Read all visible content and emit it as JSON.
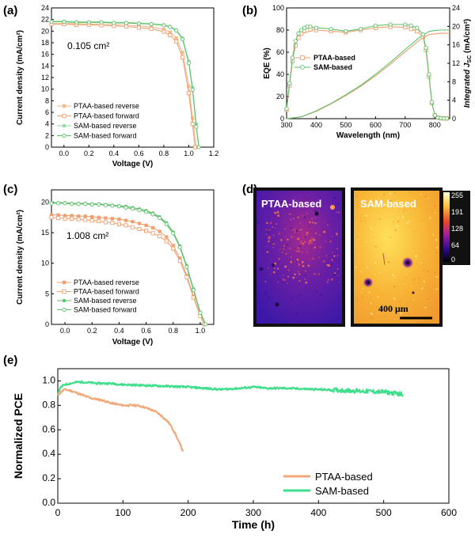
{
  "colors": {
    "ptaa_light": "#f4b98c",
    "ptaa": "#f0a070",
    "sam": "#5fc06a",
    "sam_light": "#8ed99a",
    "sam_e": "#3ddf8a",
    "ptaa_e": "#f2a878"
  },
  "chart_data": [
    {
      "id": "a",
      "panel_label": "(a)",
      "type": "line",
      "annotation": "0.105 cm²",
      "xlabel": "Voltage (V)",
      "ylabel": "Current density (mA/cm²)",
      "xlim": [
        -0.1,
        1.2
      ],
      "ylim": [
        0,
        24
      ],
      "xticks": [
        "0.0",
        "0.2",
        "0.4",
        "0.6",
        "0.8",
        "1.0",
        "1.2"
      ],
      "yticks": [
        "0",
        "2",
        "4",
        "6",
        "8",
        "10",
        "12",
        "14",
        "16",
        "18",
        "20",
        "22",
        "24"
      ],
      "legend_position": "bottom-left",
      "series": [
        {
          "name": "PTAA-based reverse",
          "marker": "filled-square",
          "color_key": "ptaa_light",
          "x": [
            -0.1,
            0.0,
            0.1,
            0.2,
            0.3,
            0.4,
            0.5,
            0.6,
            0.7,
            0.8,
            0.85,
            0.9,
            0.95,
            1.0,
            1.03,
            1.06
          ],
          "y": [
            21.3,
            21.3,
            21.3,
            21.2,
            21.2,
            21.1,
            21.0,
            20.9,
            20.7,
            20.3,
            19.8,
            18.8,
            16.3,
            10.5,
            5.0,
            0
          ]
        },
        {
          "name": "PTAA-based forward",
          "marker": "open-square",
          "color_key": "ptaa",
          "x": [
            -0.1,
            0.0,
            0.1,
            0.2,
            0.3,
            0.4,
            0.5,
            0.6,
            0.7,
            0.8,
            0.85,
            0.9,
            0.95,
            1.0,
            1.03,
            1.05
          ],
          "y": [
            21.2,
            21.2,
            21.1,
            21.1,
            21.0,
            20.9,
            20.8,
            20.6,
            20.4,
            19.9,
            19.3,
            18.2,
            15.5,
            9.3,
            4.0,
            0
          ]
        },
        {
          "name": "SAM-based reverse",
          "marker": "filled-circle",
          "color_key": "sam_light",
          "x": [
            -0.1,
            0.0,
            0.1,
            0.2,
            0.3,
            0.4,
            0.5,
            0.6,
            0.7,
            0.8,
            0.85,
            0.9,
            0.95,
            1.0,
            1.03,
            1.06,
            1.08
          ],
          "y": [
            21.7,
            21.7,
            21.6,
            21.6,
            21.6,
            21.5,
            21.5,
            21.4,
            21.3,
            21.1,
            20.8,
            20.2,
            18.8,
            14.8,
            10.3,
            4.0,
            0
          ]
        },
        {
          "name": "SAM-based forward",
          "marker": "open-circle",
          "color_key": "sam",
          "x": [
            -0.1,
            0.0,
            0.1,
            0.2,
            0.3,
            0.4,
            0.5,
            0.6,
            0.7,
            0.8,
            0.85,
            0.9,
            0.95,
            1.0,
            1.03,
            1.06,
            1.08
          ],
          "y": [
            21.6,
            21.6,
            21.5,
            21.5,
            21.5,
            21.4,
            21.4,
            21.3,
            21.2,
            21.0,
            20.7,
            20.1,
            18.6,
            14.5,
            9.9,
            3.5,
            0
          ]
        }
      ]
    },
    {
      "id": "b",
      "panel_label": "(b)",
      "type": "line",
      "xlabel": "Wavelength (nm)",
      "ylabel": "EQE (%)",
      "ylabel_right": "Integrated J",
      "ylabel_right_sub": "SC",
      "ylabel_right_unit": " (mA/cm²)",
      "xlim": [
        300,
        850
      ],
      "ylim": [
        0,
        100
      ],
      "ylim_right": [
        0,
        24
      ],
      "xticks": [
        "300",
        "400",
        "500",
        "600",
        "700",
        "800"
      ],
      "yticks": [
        "0",
        "20",
        "40",
        "60",
        "80",
        "100"
      ],
      "yticks_right": [
        "0",
        "4",
        "8",
        "12",
        "16",
        "20",
        "24"
      ],
      "legend_position": "center-right",
      "series": [
        {
          "name": "PTAA-based",
          "marker": "open-square",
          "color_key": "ptaa",
          "x": [
            300,
            310,
            320,
            330,
            340,
            350,
            360,
            370,
            380,
            400,
            450,
            500,
            550,
            600,
            650,
            700,
            720,
            740,
            760,
            770,
            780,
            790,
            800,
            810,
            820,
            830,
            840
          ],
          "y": [
            8,
            30,
            52,
            66,
            73,
            77,
            79,
            80,
            80.5,
            80,
            79,
            78,
            80,
            82,
            83,
            82.5,
            81,
            79,
            74,
            62,
            38,
            14,
            3,
            1,
            0.5,
            0.3,
            0.2
          ]
        },
        {
          "name": "SAM-based",
          "marker": "open-circle",
          "color_key": "sam",
          "x": [
            300,
            310,
            320,
            330,
            340,
            350,
            360,
            370,
            380,
            400,
            450,
            500,
            550,
            600,
            650,
            700,
            720,
            740,
            760,
            770,
            780,
            790,
            800,
            810,
            820,
            830,
            840
          ],
          "y": [
            9,
            32,
            55,
            70,
            77,
            80,
            82,
            83,
            83,
            82,
            81,
            79,
            81,
            84,
            85,
            85,
            84,
            82,
            76,
            64,
            40,
            15,
            3,
            1,
            0.5,
            0.3,
            0.2
          ]
        }
      ],
      "integrated_series": [
        {
          "color_key": "ptaa",
          "x": [
            300,
            350,
            400,
            450,
            500,
            550,
            600,
            650,
            700,
            750,
            780,
            800,
            820,
            850
          ],
          "y": [
            0,
            0.4,
            1.6,
            3.2,
            5.0,
            7.0,
            9.3,
            11.8,
            14.5,
            17.1,
            18.2,
            18.4,
            18.5,
            18.5
          ]
        },
        {
          "color_key": "sam",
          "x": [
            300,
            350,
            400,
            450,
            500,
            550,
            600,
            650,
            700,
            750,
            780,
            800,
            820,
            850
          ],
          "y": [
            0,
            0.4,
            1.7,
            3.3,
            5.2,
            7.2,
            9.6,
            12.2,
            15.0,
            17.7,
            18.9,
            19.1,
            19.2,
            19.2
          ]
        }
      ]
    },
    {
      "id": "c",
      "panel_label": "(c)",
      "type": "line",
      "annotation": "1.008 cm²",
      "xlabel": "Voltage (V)",
      "ylabel": "Current density (mA/cm²)",
      "xlim": [
        -0.1,
        1.1
      ],
      "ylim": [
        0,
        22
      ],
      "xticks": [
        "0.0",
        "0.2",
        "0.4",
        "0.6",
        "0.8",
        "1.0"
      ],
      "yticks": [
        "0",
        "5",
        "10",
        "15",
        "20"
      ],
      "legend_position": "bottom-left",
      "series": [
        {
          "name": "PTAA-based reverse",
          "marker": "filled-square",
          "color_key": "ptaa",
          "x": [
            -0.1,
            -0.05,
            0.0,
            0.05,
            0.1,
            0.15,
            0.2,
            0.25,
            0.3,
            0.35,
            0.4,
            0.45,
            0.5,
            0.55,
            0.6,
            0.65,
            0.7,
            0.75,
            0.8,
            0.85,
            0.9,
            0.95,
            1.0,
            1.03
          ],
          "y": [
            17.9,
            17.9,
            17.8,
            17.8,
            17.7,
            17.7,
            17.6,
            17.5,
            17.4,
            17.3,
            17.2,
            17.0,
            16.8,
            16.5,
            16.2,
            15.8,
            15.2,
            14.3,
            12.9,
            10.8,
            8.0,
            4.6,
            1.5,
            0
          ]
        },
        {
          "name": "PTAA-based forward",
          "marker": "open-square",
          "color_key": "ptaa",
          "x": [
            -0.1,
            -0.05,
            0.0,
            0.05,
            0.1,
            0.15,
            0.2,
            0.25,
            0.3,
            0.35,
            0.4,
            0.45,
            0.5,
            0.55,
            0.6,
            0.65,
            0.7,
            0.75,
            0.8,
            0.85,
            0.9,
            0.95,
            1.0,
            1.03
          ],
          "y": [
            17.5,
            17.4,
            17.3,
            17.3,
            17.2,
            17.1,
            17.0,
            16.9,
            16.7,
            16.6,
            16.4,
            16.2,
            15.9,
            15.6,
            15.3,
            14.9,
            14.4,
            13.6,
            12.4,
            10.4,
            7.7,
            4.4,
            1.4,
            0
          ]
        },
        {
          "name": "SAM-based reverse",
          "marker": "filled-circle",
          "color_key": "sam",
          "x": [
            -0.1,
            -0.05,
            0.0,
            0.05,
            0.1,
            0.15,
            0.2,
            0.25,
            0.3,
            0.35,
            0.4,
            0.45,
            0.5,
            0.55,
            0.6,
            0.65,
            0.7,
            0.75,
            0.8,
            0.85,
            0.9,
            0.95,
            1.0,
            1.04
          ],
          "y": [
            19.9,
            19.9,
            19.9,
            19.8,
            19.8,
            19.8,
            19.7,
            19.7,
            19.6,
            19.5,
            19.4,
            19.3,
            19.1,
            18.9,
            18.6,
            18.2,
            17.6,
            16.6,
            15.1,
            12.8,
            9.6,
            5.8,
            2.0,
            0
          ]
        },
        {
          "name": "SAM-based forward",
          "marker": "open-circle",
          "color_key": "sam",
          "x": [
            -0.1,
            -0.05,
            0.0,
            0.05,
            0.1,
            0.15,
            0.2,
            0.25,
            0.3,
            0.35,
            0.4,
            0.45,
            0.5,
            0.55,
            0.6,
            0.65,
            0.7,
            0.75,
            0.8,
            0.85,
            0.9,
            0.95,
            1.0,
            1.04
          ],
          "y": [
            19.8,
            19.8,
            19.8,
            19.7,
            19.7,
            19.7,
            19.6,
            19.6,
            19.5,
            19.4,
            19.3,
            19.1,
            18.9,
            18.7,
            18.4,
            18.0,
            17.4,
            16.4,
            14.9,
            12.6,
            9.4,
            5.6,
            1.9,
            0
          ]
        }
      ]
    },
    {
      "id": "d",
      "panel_label": "(d)",
      "type": "heatmap",
      "maps": [
        {
          "label": "PTAA-based"
        },
        {
          "label": "SAM-based"
        }
      ],
      "colorbar_ticks": [
        "255",
        "191",
        "128",
        "64",
        "0"
      ],
      "scale_bar_label": "400 μm"
    },
    {
      "id": "e",
      "panel_label": "(e)",
      "type": "line",
      "xlabel": "Time (h)",
      "ylabel": "Normalized PCE",
      "xlim": [
        0,
        600
      ],
      "ylim": [
        0,
        1.1
      ],
      "xticks": [
        "0",
        "100",
        "200",
        "300",
        "400",
        "500",
        "600"
      ],
      "yticks": [
        "0.0",
        "0.2",
        "0.4",
        "0.6",
        "0.8",
        "1.0"
      ],
      "legend_position": "bottom-right",
      "series": [
        {
          "name": "PTAA-based",
          "color_key": "ptaa_e",
          "x": [
            0,
            5,
            10,
            20,
            30,
            40,
            50,
            60,
            70,
            80,
            90,
            100,
            110,
            120,
            130,
            140,
            150,
            160,
            170,
            175,
            180,
            185,
            190,
            192
          ],
          "y": [
            0.88,
            0.91,
            0.93,
            0.92,
            0.9,
            0.88,
            0.86,
            0.85,
            0.84,
            0.82,
            0.81,
            0.8,
            0.8,
            0.8,
            0.79,
            0.77,
            0.75,
            0.71,
            0.66,
            0.62,
            0.57,
            0.51,
            0.45,
            0.43
          ]
        },
        {
          "name": "SAM-based",
          "color_key": "sam_e",
          "x": [
            0,
            5,
            10,
            20,
            30,
            40,
            60,
            80,
            100,
            150,
            200,
            250,
            280,
            300,
            320,
            350,
            400,
            450,
            500,
            530
          ],
          "y": [
            0.9,
            0.95,
            0.97,
            0.98,
            0.99,
            0.99,
            0.98,
            0.98,
            0.97,
            0.96,
            0.95,
            0.93,
            0.94,
            0.95,
            0.94,
            0.94,
            0.93,
            0.92,
            0.91,
            0.89
          ]
        }
      ]
    }
  ]
}
